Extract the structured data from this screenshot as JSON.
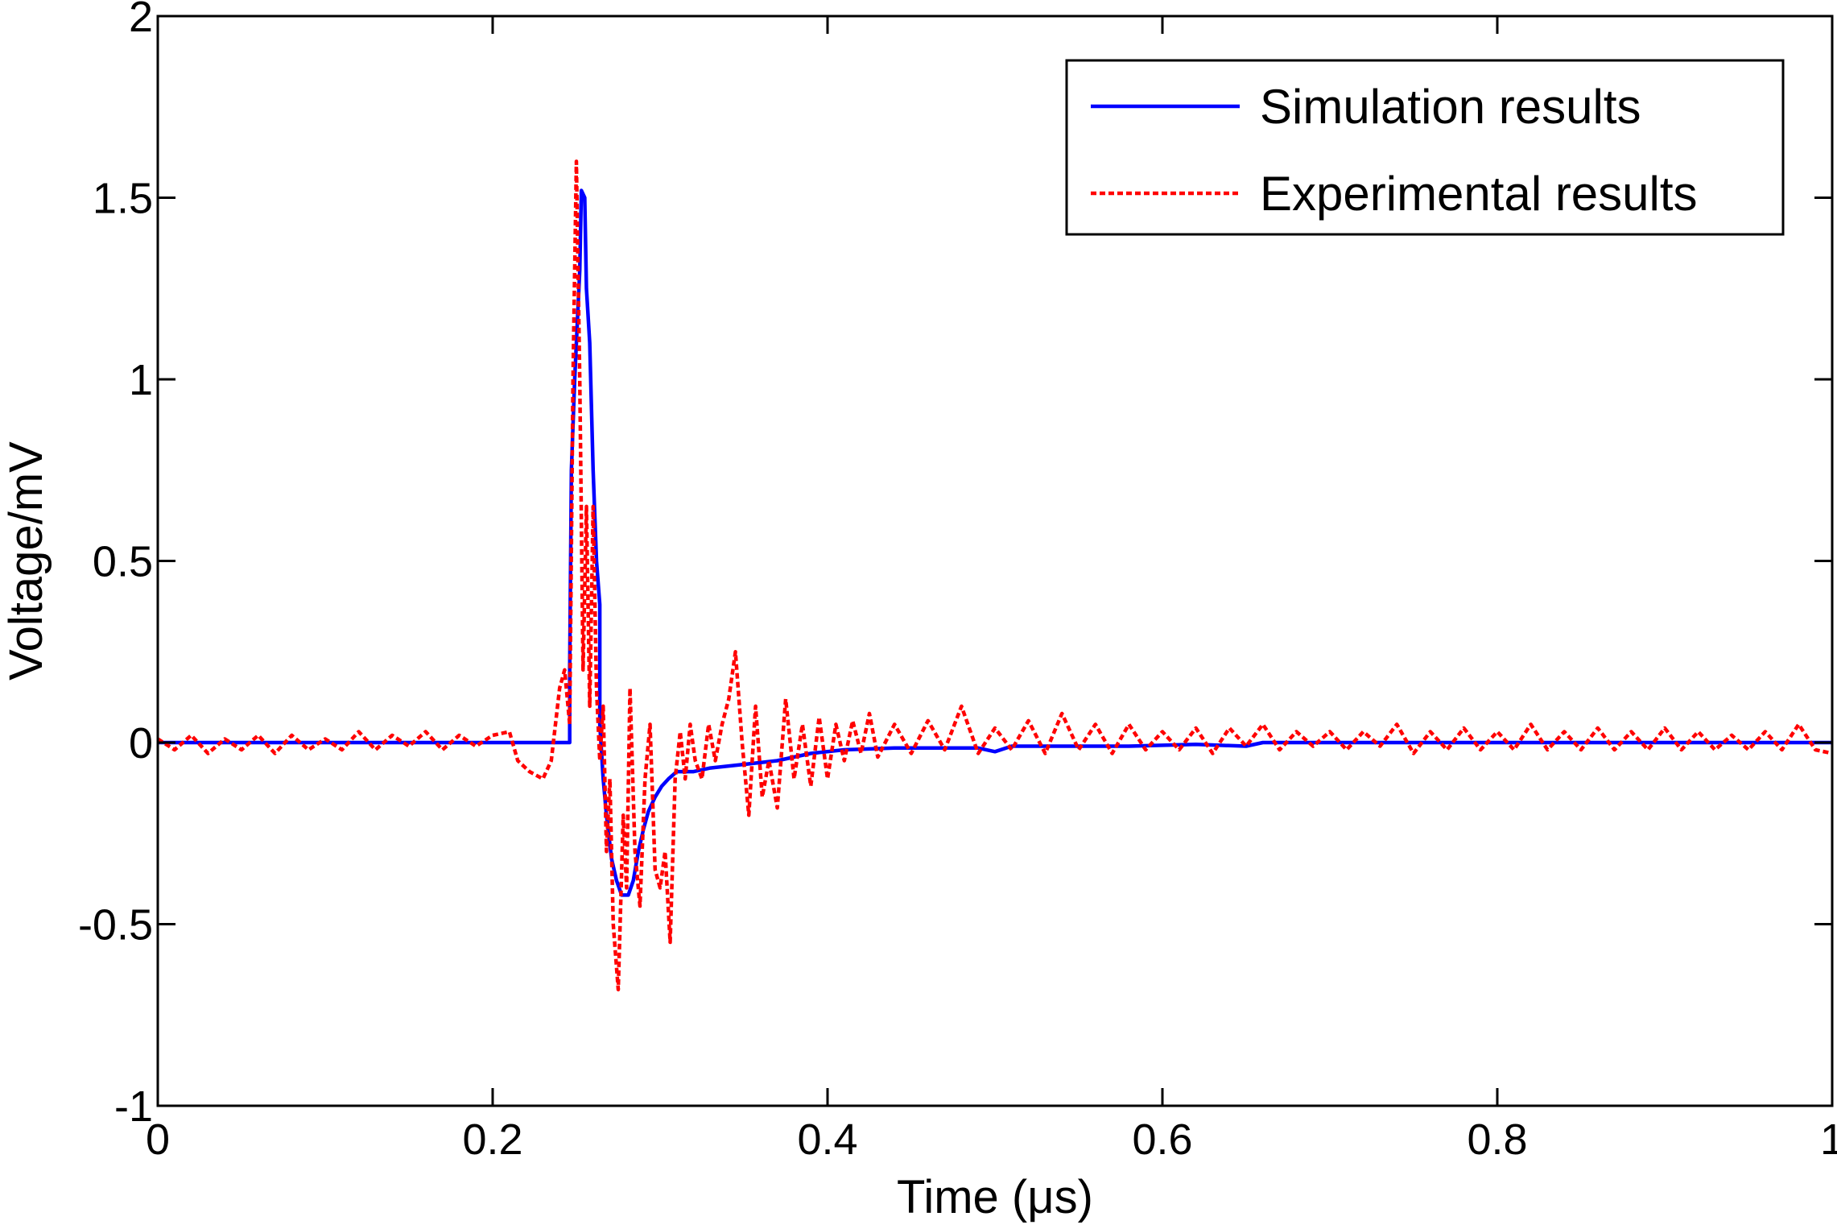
{
  "chart_data": {
    "type": "line",
    "title": "",
    "xlabel": "Time (μs)",
    "ylabel": "Voltage/mV",
    "xlim": [
      0,
      1
    ],
    "ylim": [
      -1,
      2
    ],
    "xticks": [
      0,
      0.2,
      0.4,
      0.6,
      0.8,
      1
    ],
    "xtick_labels": [
      "0",
      "0.2",
      "0.4",
      "0.6",
      "0.8",
      "1"
    ],
    "yticks": [
      -1,
      -0.5,
      0,
      0.5,
      1,
      1.5,
      2
    ],
    "ytick_labels": [
      "-1",
      "-0.5",
      "0",
      "0.5",
      "1",
      "1.5",
      "2"
    ],
    "grid": false,
    "legend_position": "top-right",
    "series": [
      {
        "name": "Simulation results",
        "color": "#0000ff",
        "style": "solid",
        "points": [
          [
            0,
            0
          ],
          [
            0.246,
            0
          ],
          [
            0.246,
            0.2
          ],
          [
            0.247,
            0.75
          ],
          [
            0.249,
            1.0
          ],
          [
            0.252,
            1.3
          ],
          [
            0.253,
            1.52
          ],
          [
            0.255,
            1.5
          ],
          [
            0.256,
            1.25
          ],
          [
            0.258,
            1.1
          ],
          [
            0.26,
            0.75
          ],
          [
            0.262,
            0.5
          ],
          [
            0.264,
            0.38
          ],
          [
            0.264,
            0.05
          ],
          [
            0.266,
            -0.1
          ],
          [
            0.268,
            -0.2
          ],
          [
            0.271,
            -0.32
          ],
          [
            0.274,
            -0.38
          ],
          [
            0.277,
            -0.42
          ],
          [
            0.281,
            -0.42
          ],
          [
            0.284,
            -0.38
          ],
          [
            0.287,
            -0.3
          ],
          [
            0.29,
            -0.24
          ],
          [
            0.293,
            -0.19
          ],
          [
            0.297,
            -0.15
          ],
          [
            0.301,
            -0.12
          ],
          [
            0.305,
            -0.1
          ],
          [
            0.31,
            -0.08
          ],
          [
            0.32,
            -0.08
          ],
          [
            0.33,
            -0.07
          ],
          [
            0.35,
            -0.06
          ],
          [
            0.37,
            -0.05
          ],
          [
            0.38,
            -0.04
          ],
          [
            0.39,
            -0.03
          ],
          [
            0.41,
            -0.02
          ],
          [
            0.44,
            -0.015
          ],
          [
            0.49,
            -0.015
          ],
          [
            0.5,
            -0.025
          ],
          [
            0.51,
            -0.01
          ],
          [
            0.58,
            -0.01
          ],
          [
            0.62,
            -0.005
          ],
          [
            0.65,
            -0.01
          ],
          [
            0.66,
            0
          ],
          [
            0.7,
            0
          ],
          [
            1.0,
            0
          ]
        ]
      },
      {
        "name": "Experimental results",
        "color": "#ff0000",
        "style": "dotted",
        "points": [
          [
            0,
            0.01
          ],
          [
            0.01,
            -0.02
          ],
          [
            0.02,
            0.02
          ],
          [
            0.03,
            -0.03
          ],
          [
            0.04,
            0.01
          ],
          [
            0.05,
            -0.02
          ],
          [
            0.06,
            0.02
          ],
          [
            0.07,
            -0.03
          ],
          [
            0.08,
            0.02
          ],
          [
            0.09,
            -0.02
          ],
          [
            0.1,
            0.01
          ],
          [
            0.11,
            -0.02
          ],
          [
            0.12,
            0.03
          ],
          [
            0.13,
            -0.02
          ],
          [
            0.14,
            0.02
          ],
          [
            0.15,
            -0.01
          ],
          [
            0.16,
            0.03
          ],
          [
            0.17,
            -0.02
          ],
          [
            0.18,
            0.02
          ],
          [
            0.19,
            -0.01
          ],
          [
            0.2,
            0.02
          ],
          [
            0.21,
            0.03
          ],
          [
            0.215,
            -0.05
          ],
          [
            0.222,
            -0.08
          ],
          [
            0.23,
            -0.1
          ],
          [
            0.235,
            -0.05
          ],
          [
            0.24,
            0.15
          ],
          [
            0.243,
            0.2
          ],
          [
            0.246,
            0.05
          ],
          [
            0.248,
            1.0
          ],
          [
            0.25,
            1.6
          ],
          [
            0.252,
            1.0
          ],
          [
            0.254,
            0.2
          ],
          [
            0.256,
            0.65
          ],
          [
            0.258,
            0.1
          ],
          [
            0.26,
            0.65
          ],
          [
            0.262,
            0.15
          ],
          [
            0.264,
            -0.05
          ],
          [
            0.266,
            0.1
          ],
          [
            0.268,
            -0.3
          ],
          [
            0.27,
            -0.1
          ],
          [
            0.272,
            -0.5
          ],
          [
            0.275,
            -0.68
          ],
          [
            0.278,
            -0.2
          ],
          [
            0.28,
            -0.4
          ],
          [
            0.282,
            0.15
          ],
          [
            0.285,
            -0.3
          ],
          [
            0.288,
            -0.45
          ],
          [
            0.291,
            -0.1
          ],
          [
            0.294,
            0.05
          ],
          [
            0.297,
            -0.35
          ],
          [
            0.3,
            -0.4
          ],
          [
            0.303,
            -0.3
          ],
          [
            0.306,
            -0.55
          ],
          [
            0.309,
            -0.1
          ],
          [
            0.312,
            0.03
          ],
          [
            0.315,
            -0.1
          ],
          [
            0.318,
            0.05
          ],
          [
            0.321,
            -0.05
          ],
          [
            0.325,
            -0.1
          ],
          [
            0.329,
            0.05
          ],
          [
            0.333,
            -0.05
          ],
          [
            0.337,
            0.05
          ],
          [
            0.341,
            0.12
          ],
          [
            0.345,
            0.25
          ],
          [
            0.349,
            0.0
          ],
          [
            0.353,
            -0.2
          ],
          [
            0.357,
            0.1
          ],
          [
            0.361,
            -0.15
          ],
          [
            0.365,
            -0.05
          ],
          [
            0.37,
            -0.18
          ],
          [
            0.375,
            0.12
          ],
          [
            0.38,
            -0.1
          ],
          [
            0.385,
            0.05
          ],
          [
            0.39,
            -0.12
          ],
          [
            0.395,
            0.07
          ],
          [
            0.4,
            -0.1
          ],
          [
            0.405,
            0.05
          ],
          [
            0.41,
            -0.05
          ],
          [
            0.415,
            0.06
          ],
          [
            0.42,
            -0.03
          ],
          [
            0.425,
            0.08
          ],
          [
            0.43,
            -0.04
          ],
          [
            0.44,
            0.05
          ],
          [
            0.45,
            -0.03
          ],
          [
            0.46,
            0.06
          ],
          [
            0.47,
            -0.02
          ],
          [
            0.48,
            0.1
          ],
          [
            0.49,
            -0.03
          ],
          [
            0.5,
            0.04
          ],
          [
            0.51,
            -0.02
          ],
          [
            0.52,
            0.06
          ],
          [
            0.53,
            -0.03
          ],
          [
            0.54,
            0.08
          ],
          [
            0.55,
            -0.02
          ],
          [
            0.56,
            0.05
          ],
          [
            0.57,
            -0.03
          ],
          [
            0.58,
            0.05
          ],
          [
            0.59,
            -0.02
          ],
          [
            0.6,
            0.03
          ],
          [
            0.61,
            -0.02
          ],
          [
            0.62,
            0.04
          ],
          [
            0.63,
            -0.03
          ],
          [
            0.64,
            0.04
          ],
          [
            0.65,
            -0.01
          ],
          [
            0.66,
            0.05
          ],
          [
            0.67,
            -0.02
          ],
          [
            0.68,
            0.03
          ],
          [
            0.69,
            -0.01
          ],
          [
            0.7,
            0.03
          ],
          [
            0.71,
            -0.02
          ],
          [
            0.72,
            0.03
          ],
          [
            0.73,
            -0.01
          ],
          [
            0.74,
            0.05
          ],
          [
            0.75,
            -0.03
          ],
          [
            0.76,
            0.03
          ],
          [
            0.77,
            -0.02
          ],
          [
            0.78,
            0.04
          ],
          [
            0.79,
            -0.02
          ],
          [
            0.8,
            0.03
          ],
          [
            0.81,
            -0.02
          ],
          [
            0.82,
            0.05
          ],
          [
            0.83,
            -0.02
          ],
          [
            0.84,
            0.03
          ],
          [
            0.85,
            -0.02
          ],
          [
            0.86,
            0.04
          ],
          [
            0.87,
            -0.02
          ],
          [
            0.88,
            0.03
          ],
          [
            0.89,
            -0.02
          ],
          [
            0.9,
            0.04
          ],
          [
            0.91,
            -0.02
          ],
          [
            0.92,
            0.03
          ],
          [
            0.93,
            -0.02
          ],
          [
            0.94,
            0.02
          ],
          [
            0.95,
            -0.02
          ],
          [
            0.96,
            0.03
          ],
          [
            0.97,
            -0.02
          ],
          [
            0.98,
            0.05
          ],
          [
            0.99,
            -0.02
          ],
          [
            1.0,
            -0.03
          ]
        ]
      }
    ]
  }
}
